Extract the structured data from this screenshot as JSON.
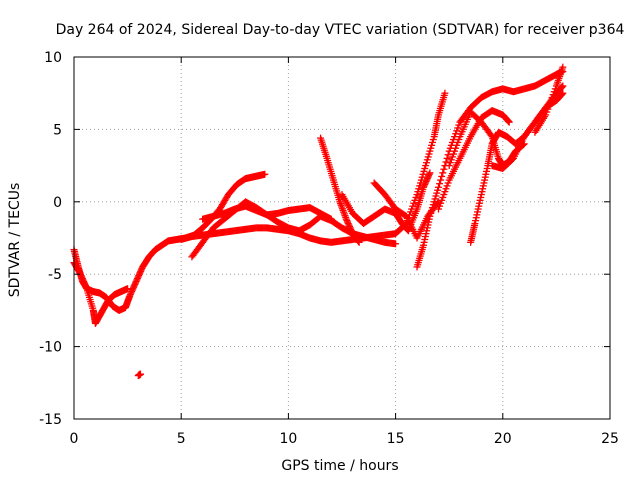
{
  "chart_data": {
    "type": "scatter",
    "title": "Day 264 of 2024, Sidereal Day-to-day VTEC variation (SDTVAR) for receiver p364",
    "xlabel": "GPS time / hours",
    "ylabel": "SDTVAR / TECUs",
    "xlim": [
      0,
      25
    ],
    "ylim": [
      -15,
      10
    ],
    "xticks": [
      "0",
      "5",
      "10",
      "15",
      "20",
      "25"
    ],
    "yticks": [
      "-15",
      "-10",
      "-5",
      "0",
      "5",
      "10"
    ],
    "grid": true,
    "marker": "+",
    "color": "#ff0000",
    "series": [
      {
        "x": [
          0.0,
          0.2,
          0.4,
          0.6,
          0.9,
          1.2,
          1.5,
          1.8,
          2.1,
          2.4,
          2.6,
          2.9,
          3.2,
          3.5,
          3.8,
          4.1,
          4.4,
          4.8,
          5.2,
          5.6,
          6.0,
          6.4,
          6.8,
          7.2,
          7.6,
          8.0,
          8.3,
          8.6,
          8.9
        ],
        "y": [
          -3.3,
          -4.5,
          -5.5,
          -6.0,
          -6.2,
          -6.3,
          -6.6,
          -7.2,
          -7.5,
          -7.3,
          -6.5,
          -5.5,
          -4.5,
          -3.8,
          -3.3,
          -3.0,
          -2.7,
          -2.6,
          -2.5,
          -2.3,
          -1.8,
          -1.2,
          -0.5,
          0.5,
          1.2,
          1.6,
          1.7,
          1.8,
          1.9
        ]
      },
      {
        "x": [
          0.0,
          0.3,
          0.6,
          0.9,
          1.0,
          1.3,
          1.6,
          1.9,
          2.2,
          2.5
        ],
        "y": [
          -4.2,
          -5.0,
          -6.0,
          -7.5,
          -8.4,
          -7.6,
          -6.8,
          -6.4,
          -6.2,
          -6.0
        ]
      },
      {
        "x": [
          3.0,
          3.1
        ],
        "y": [
          -12.0,
          -11.9
        ]
      },
      {
        "x": [
          5.0,
          5.5,
          6.0,
          6.5,
          7.0,
          7.5,
          8.0,
          8.5,
          9.0,
          9.5,
          10.0,
          10.5,
          11.0,
          11.5,
          12.0,
          12.5,
          13.0,
          13.5,
          14.0,
          14.5,
          15.0,
          15.5,
          16.0,
          16.4,
          16.8,
          17.0,
          17.3
        ],
        "y": [
          -2.6,
          -2.4,
          -2.3,
          -2.2,
          -2.1,
          -2.0,
          -1.9,
          -1.8,
          -1.8,
          -1.9,
          -2.0,
          -2.2,
          -2.5,
          -2.7,
          -2.8,
          -2.7,
          -2.6,
          -2.5,
          -2.4,
          -2.3,
          -2.2,
          -1.5,
          0.5,
          2.5,
          4.5,
          6.0,
          7.5
        ]
      },
      {
        "x": [
          5.5,
          6.0,
          6.5,
          7.0,
          7.5,
          8.0,
          8.5,
          9.0,
          9.5,
          10.0,
          10.5,
          11.0,
          11.5,
          12.0,
          12.5,
          13.0,
          13.5,
          14.0,
          14.5,
          15.0
        ],
        "y": [
          -3.8,
          -2.8,
          -1.8,
          -1.2,
          -0.6,
          0.0,
          -0.4,
          -0.9,
          -1.4,
          -1.8,
          -2.0,
          -1.6,
          -1.0,
          -1.3,
          -1.8,
          -2.2,
          -2.4,
          -2.6,
          -2.8,
          -2.9
        ]
      },
      {
        "x": [
          6.0,
          6.5,
          7.0,
          7.5,
          8.0,
          8.5,
          9.0,
          9.5,
          10.0,
          10.5,
          11.0,
          11.5,
          12.0
        ],
        "y": [
          -1.2,
          -1.0,
          -0.8,
          -0.5,
          -0.3,
          -0.6,
          -0.9,
          -0.8,
          -0.6,
          -0.5,
          -0.4,
          -0.8,
          -1.2
        ]
      },
      {
        "x": [
          11.5,
          11.8,
          12.1,
          12.4,
          12.7,
          13.0,
          13.3
        ],
        "y": [
          4.4,
          3.0,
          1.5,
          0.0,
          -1.2,
          -2.2,
          -2.8
        ]
      },
      {
        "x": [
          12.5,
          13.0,
          13.5,
          14.0,
          14.5,
          15.0,
          15.3,
          15.6,
          16.0,
          16.3,
          16.6
        ],
        "y": [
          0.5,
          -0.8,
          -1.5,
          -1.0,
          -0.5,
          -0.8,
          -1.5,
          -2.0,
          -0.5,
          1.0,
          2.0
        ]
      },
      {
        "x": [
          14.0,
          14.5,
          15.0,
          15.5,
          16.0,
          16.5,
          17.0
        ],
        "y": [
          1.3,
          0.5,
          -0.5,
          -1.0,
          -2.5,
          -1.0,
          0.0
        ]
      },
      {
        "x": [
          16.0,
          16.3,
          16.6,
          17.0,
          17.5,
          18.0,
          18.5,
          19.0,
          19.5,
          20.0,
          20.5,
          21.0,
          21.5,
          22.0,
          22.5,
          22.8
        ],
        "y": [
          -4.5,
          -3.0,
          -1.0,
          1.0,
          3.5,
          5.5,
          6.5,
          7.2,
          7.6,
          7.8,
          7.6,
          7.8,
          8.0,
          8.4,
          8.8,
          9.0
        ]
      },
      {
        "x": [
          17.0,
          17.5,
          18.0,
          18.5,
          19.0,
          19.5,
          20.0,
          20.3
        ],
        "y": [
          -0.5,
          1.5,
          3.0,
          4.5,
          5.8,
          6.3,
          6.0,
          5.5
        ]
      },
      {
        "x": [
          17.5,
          18.0,
          18.5,
          19.0,
          19.5,
          19.8,
          20.0,
          20.3,
          20.6,
          21.0
        ],
        "y": [
          2.5,
          4.5,
          6.2,
          5.5,
          4.5,
          3.0,
          2.5,
          2.8,
          3.5,
          4.0
        ]
      },
      {
        "x": [
          18.5,
          18.7,
          19.0,
          19.3,
          19.5,
          19.8,
          20.2,
          20.6,
          21.0,
          21.5,
          22.0,
          22.5,
          22.8
        ],
        "y": [
          -2.8,
          -1.5,
          0.5,
          2.5,
          4.0,
          4.8,
          4.5,
          4.0,
          4.5,
          5.5,
          6.5,
          7.5,
          8.0
        ]
      },
      {
        "x": [
          19.5,
          20.0,
          20.5,
          21.0,
          21.5,
          22.0,
          22.5,
          22.8
        ],
        "y": [
          2.5,
          2.3,
          3.0,
          4.5,
          5.5,
          6.5,
          7.0,
          7.5
        ]
      },
      {
        "x": [
          21.5,
          22.0,
          22.5,
          22.8
        ],
        "y": [
          4.8,
          6.0,
          8.0,
          9.3
        ]
      }
    ]
  }
}
